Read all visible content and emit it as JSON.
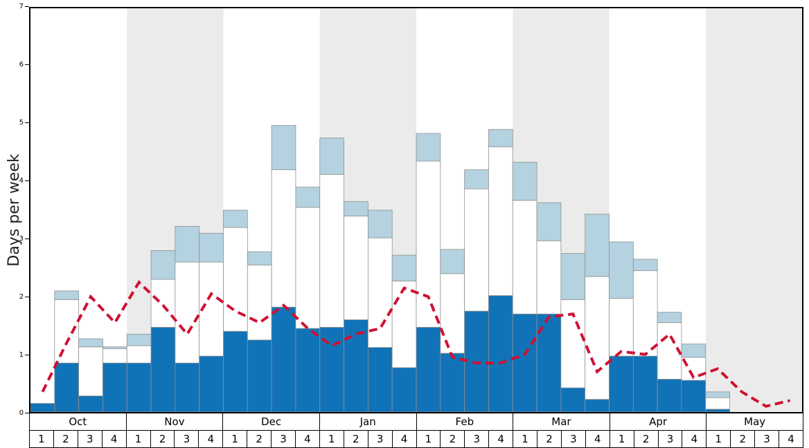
{
  "chart_data": {
    "type": "bar",
    "stacked": true,
    "title": "",
    "ylabel": "Days per week",
    "ylim": [
      0,
      7
    ],
    "y_ticks": [
      0,
      1,
      2,
      3,
      4,
      5,
      6,
      7
    ],
    "grid": false,
    "legend": "none",
    "months": [
      "Oct",
      "Nov",
      "Dec",
      "Jan",
      "Feb",
      "Mar",
      "Apr",
      "May"
    ],
    "week_labels": [
      "1",
      "2",
      "3",
      "4"
    ],
    "band_color": "#ebebeb",
    "shaded_month_indices": [
      1,
      3,
      5,
      7
    ],
    "bar_border_color": "#909090",
    "series": [
      {
        "name": "dark-blue",
        "color": "#1173b7",
        "values": [
          0.15,
          0.85,
          0.28,
          0.85,
          0.85,
          1.47,
          0.85,
          0.97,
          1.4,
          1.25,
          1.82,
          1.45,
          1.47,
          1.6,
          1.12,
          0.77,
          1.47,
          1.02,
          1.75,
          2.02,
          1.7,
          1.7,
          0.42,
          0.22,
          0.97,
          0.97,
          0.57,
          0.55,
          0.05,
          0,
          0,
          0
        ]
      },
      {
        "name": "white",
        "color": "#ffffff",
        "values": [
          0,
          1.1,
          0.85,
          0.25,
          0.3,
          0.83,
          1.75,
          1.63,
          1.8,
          1.3,
          2.38,
          2.1,
          2.65,
          1.8,
          1.9,
          1.5,
          2.88,
          1.38,
          2.12,
          2.58,
          1.97,
          1.27,
          1.53,
          2.13,
          1.0,
          1.48,
          0.98,
          0.4,
          0.2,
          0,
          0,
          0
        ]
      },
      {
        "name": "light-blue",
        "color": "#b4d2e0",
        "values": [
          0,
          0.15,
          0.14,
          0.03,
          0.2,
          0.5,
          0.62,
          0.5,
          0.3,
          0.23,
          0.77,
          0.35,
          0.63,
          0.25,
          0.48,
          0.45,
          0.48,
          0.42,
          0.33,
          0.3,
          0.66,
          0.66,
          0.8,
          1.08,
          0.98,
          0.2,
          0.18,
          0.23,
          0.1,
          0,
          0,
          0
        ]
      }
    ],
    "line": {
      "name": "red-dashed-line",
      "color": "#d01030",
      "style": "dashed",
      "values": [
        0.35,
        1.2,
        2.0,
        1.55,
        2.25,
        1.85,
        1.35,
        2.05,
        1.75,
        1.55,
        1.85,
        1.45,
        1.15,
        1.35,
        1.45,
        2.15,
        2.0,
        0.95,
        0.85,
        0.85,
        1.0,
        1.65,
        1.7,
        0.7,
        1.05,
        1.0,
        1.35,
        0.6,
        0.75,
        0.35,
        0.1,
        0.2
      ]
    }
  }
}
